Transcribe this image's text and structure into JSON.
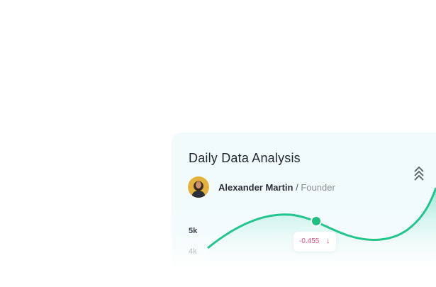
{
  "card": {
    "title": "Daily Data Analysis",
    "user_name": "Alexander Martin",
    "separator": "/",
    "user_role": "Founder",
    "collapse_icon": "double-chevron-up-icon",
    "avatar_icon": "user-avatar"
  },
  "chart_data": {
    "type": "area",
    "y_ticks": [
      "5k",
      "4k"
    ],
    "highlight": {
      "value": "-0.455",
      "trend": "down",
      "trend_icon": "arrow-down-icon"
    },
    "line_color": "#22c58b",
    "negative_color": "#e0517a"
  }
}
